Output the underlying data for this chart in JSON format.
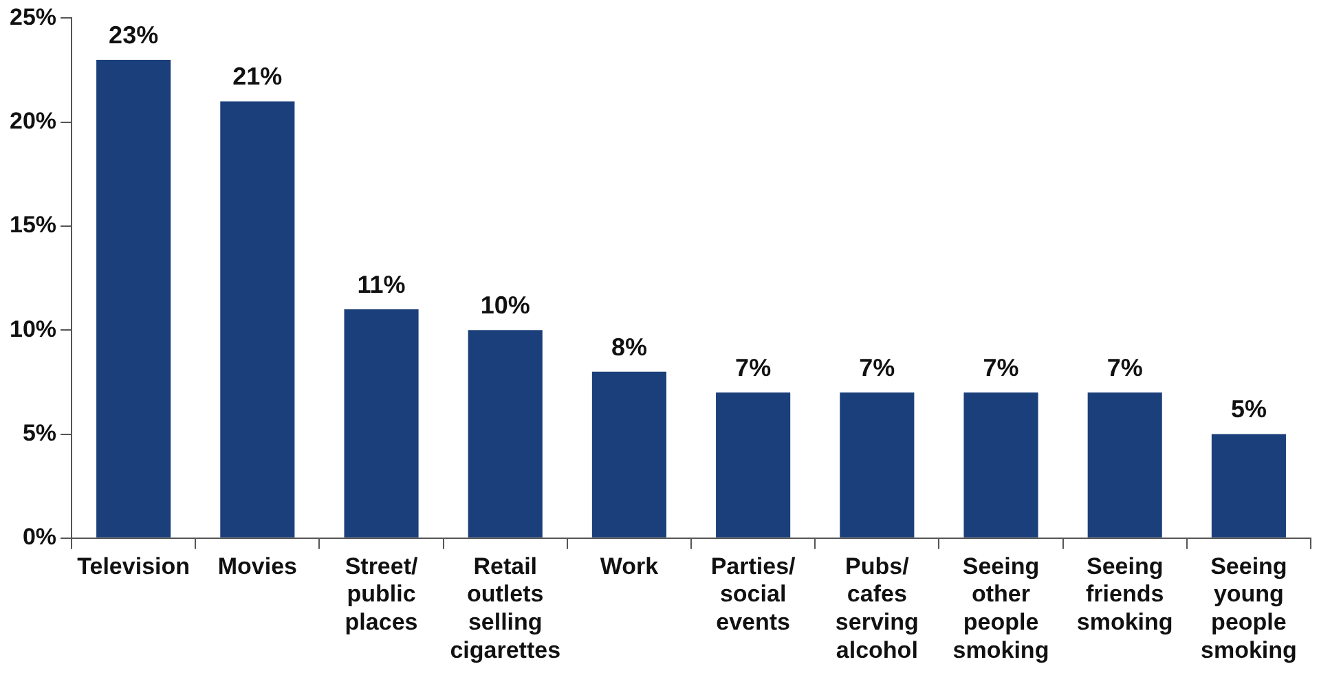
{
  "chart_data": {
    "type": "bar",
    "categories": [
      "Television",
      "Movies",
      "Street/ public places",
      "Retail outlets selling cigarettes",
      "Work",
      "Parties/ social events",
      "Pubs/ cafes serving alcohol",
      "Seeing other people smoking",
      "Seeing friends smoking",
      "Seeing young people smoking"
    ],
    "values": [
      23,
      21,
      11,
      10,
      8,
      7,
      7,
      7,
      7,
      5
    ],
    "value_labels": [
      "23%",
      "21%",
      "11%",
      "10%",
      "8%",
      "7%",
      "7%",
      "7%",
      "7%",
      "5%"
    ],
    "color": "#1b3f7a",
    "ylim": [
      0,
      25
    ],
    "yticks": [
      {
        "value": 0,
        "label": "0%"
      },
      {
        "value": 5,
        "label": "5%"
      },
      {
        "value": 10,
        "label": "10%"
      },
      {
        "value": 15,
        "label": "15%"
      },
      {
        "value": 20,
        "label": "20%"
      },
      {
        "value": 25,
        "label": "25%"
      }
    ],
    "grid": false,
    "legend": false
  }
}
